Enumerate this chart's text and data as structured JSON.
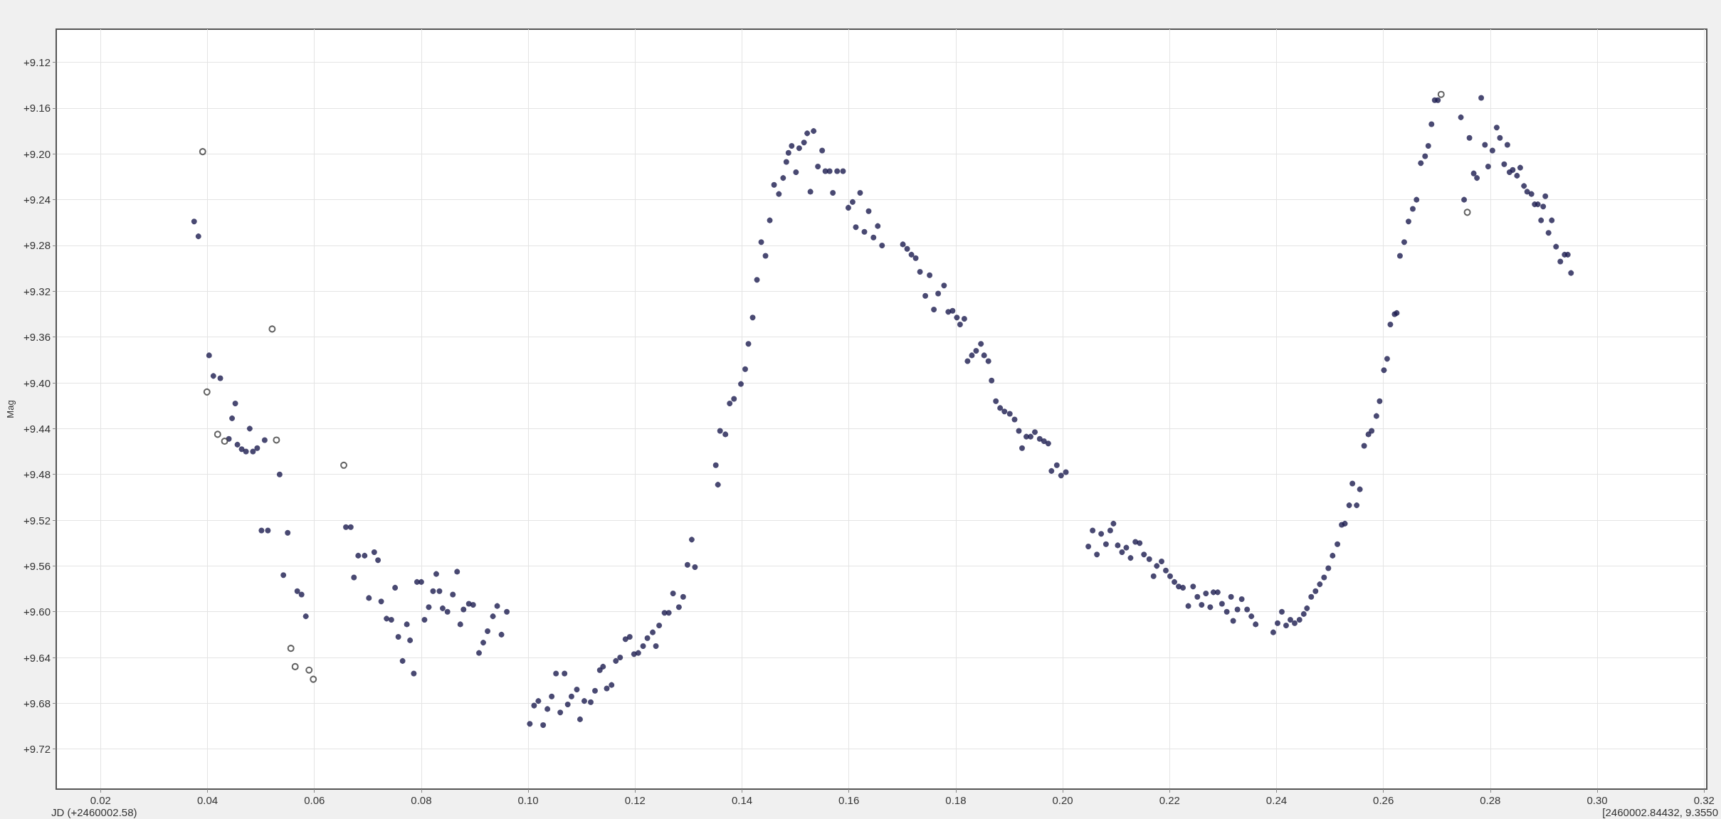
{
  "chart_data": {
    "type": "scatter",
    "xlabel": "JD (+2460002.58)",
    "ylabel": "Mag",
    "annotations": [
      "[2460002.84432, 9.3550"
    ],
    "xlim": [
      0.0117,
      0.3205
    ],
    "ylim": [
      9.755,
      9.091
    ],
    "xticks": [
      0.02,
      0.04,
      0.06,
      0.08,
      {
        "value": 0.1,
        "label": "0.10"
      },
      0.12,
      0.14,
      0.16,
      0.18,
      {
        "value": 0.2,
        "label": "0.20"
      },
      0.22,
      0.24,
      0.26,
      0.28,
      {
        "value": 0.3,
        "label": "0.30"
      },
      0.32
    ],
    "yticks": [
      {
        "value": 9.12,
        "label": "+9.12"
      },
      {
        "value": 9.16,
        "label": "+9.16"
      },
      {
        "value": 9.2,
        "label": "+9.20"
      },
      {
        "value": 9.24,
        "label": "+9.24"
      },
      {
        "value": 9.28,
        "label": "+9.28"
      },
      {
        "value": 9.32,
        "label": "+9.32"
      },
      {
        "value": 9.36,
        "label": "+9.36"
      },
      {
        "value": 9.4,
        "label": "+9.40"
      },
      {
        "value": 9.44,
        "label": "+9.44"
      },
      {
        "value": 9.48,
        "label": "+9.48"
      },
      {
        "value": 9.52,
        "label": "+9.52"
      },
      {
        "value": 9.56,
        "label": "+9.56"
      },
      {
        "value": 9.6,
        "label": "+9.60"
      },
      {
        "value": 9.64,
        "label": "+9.64"
      },
      {
        "value": 9.68,
        "label": "+9.68"
      },
      {
        "value": 9.72,
        "label": "+9.72"
      }
    ],
    "grid": true,
    "marker": "circle",
    "series": [
      {
        "color": "#1b1b4f",
        "x": [
          0.0375,
          0.0383,
          0.0403,
          0.0411,
          0.0424,
          0.044,
          0.0446,
          0.0452,
          0.0456,
          0.0464,
          0.0472,
          0.0479,
          0.0485,
          0.0493,
          0.0501,
          0.0507,
          0.0513,
          0.0535,
          0.0542,
          0.055,
          0.0568,
          0.0576,
          0.0584,
          0.0659,
          0.0668,
          0.0674,
          0.0682,
          0.0694,
          0.0702,
          0.0712,
          0.0719,
          0.0725,
          0.0735,
          0.0744,
          0.0751,
          0.0757,
          0.0765,
          0.0773,
          0.0779,
          0.0786,
          0.0792,
          0.08,
          0.0806,
          0.0814,
          0.0822,
          0.0828,
          0.0834,
          0.084,
          0.0849,
          0.0859,
          0.0867,
          0.0873,
          0.0879,
          0.0889,
          0.0897,
          0.0908,
          0.0916,
          0.0924,
          0.0934,
          0.0942,
          0.095,
          0.096,
          0.1003,
          0.1011,
          0.1019,
          0.1028,
          0.1036,
          0.1044,
          0.1052,
          0.106,
          0.1068,
          0.1074,
          0.1081,
          0.1091,
          0.1097,
          0.1105,
          0.1117,
          0.1125,
          0.1134,
          0.114,
          0.1147,
          0.1156,
          0.1164,
          0.1172,
          0.1182,
          0.119,
          0.1198,
          0.1206,
          0.1215,
          0.1223,
          0.1233,
          0.1239,
          0.1245,
          0.1255,
          0.1263,
          0.1271,
          0.1282,
          0.129,
          0.1298,
          0.1306,
          0.1312,
          0.1351,
          0.1355,
          0.1359,
          0.1369,
          0.1377,
          0.1385,
          0.1398,
          0.1406,
          0.1412,
          0.142,
          0.1428,
          0.1436,
          0.1444,
          0.1452,
          0.146,
          0.1469,
          0.1477,
          0.1483,
          0.1487,
          0.1493,
          0.1501,
          0.1507,
          0.1516,
          0.1522,
          0.1528,
          0.1534,
          0.1542,
          0.155,
          0.1556,
          0.1564,
          0.157,
          0.1578,
          0.1589,
          0.1599,
          0.1607,
          0.1613,
          0.1621,
          0.1629,
          0.1637,
          0.1646,
          0.1654,
          0.1662,
          0.1701,
          0.1709,
          0.1717,
          0.1725,
          0.1733,
          0.1743,
          0.1751,
          0.1759,
          0.1767,
          0.1778,
          0.1786,
          0.1794,
          0.1802,
          0.1808,
          0.1816,
          0.1822,
          0.183,
          0.1838,
          0.1847,
          0.1853,
          0.1861,
          0.1867,
          0.1875,
          0.1883,
          0.1891,
          0.1901,
          0.191,
          0.1918,
          0.1924,
          0.1932,
          0.194,
          0.1948,
          0.1957,
          0.1965,
          0.1973,
          0.1979,
          0.1989,
          0.1997,
          0.2006,
          0.2048,
          0.2056,
          0.2064,
          0.2072,
          0.2081,
          0.2089,
          0.2095,
          0.2103,
          0.2111,
          0.2119,
          0.2127,
          0.2136,
          0.2144,
          0.2152,
          0.2162,
          0.217,
          0.2176,
          0.2185,
          0.2193,
          0.2201,
          0.2209,
          0.2217,
          0.2225,
          0.2235,
          0.2244,
          0.2252,
          0.226,
          0.2268,
          0.2276,
          0.2282,
          0.229,
          0.2298,
          0.2307,
          0.2315,
          0.2319,
          0.2327,
          0.2335,
          0.2345,
          0.2353,
          0.2361,
          0.2394,
          0.2402,
          0.241,
          0.2418,
          0.2426,
          0.2434,
          0.2443,
          0.2451,
          0.2457,
          0.2465,
          0.2473,
          0.2481,
          0.2489,
          0.2497,
          0.2505,
          0.2514,
          0.2522,
          0.2528,
          0.2536,
          0.2542,
          0.255,
          0.2556,
          0.2564,
          0.2572,
          0.2578,
          0.2587,
          0.2593,
          0.2601,
          0.2607,
          0.2613,
          0.2621,
          0.2625,
          0.2631,
          0.2639,
          0.2647,
          0.2655,
          0.2662,
          0.267,
          0.2678,
          0.2684,
          0.269,
          0.2696,
          0.2702,
          0.2745,
          0.2751,
          0.2761,
          0.2769,
          0.2775,
          0.2783,
          0.279,
          0.2796,
          0.2804,
          0.2812,
          0.2818,
          0.2826,
          0.2832,
          0.2836,
          0.2842,
          0.285,
          0.2856,
          0.2863,
          0.2869,
          0.2877,
          0.2883,
          0.2889,
          0.2895,
          0.2899,
          0.2903,
          0.2909,
          0.2915,
          0.2923,
          0.2931,
          0.2939,
          0.2945,
          0.2951
        ],
        "values": [
          9.259,
          9.272,
          9.376,
          9.394,
          9.396,
          9.449,
          9.431,
          9.418,
          9.454,
          9.458,
          9.46,
          9.44,
          9.46,
          9.457,
          9.529,
          9.45,
          9.529,
          9.48,
          9.568,
          9.531,
          9.582,
          9.585,
          9.604,
          9.526,
          9.526,
          9.57,
          9.551,
          9.551,
          9.588,
          9.548,
          9.555,
          9.591,
          9.606,
          9.607,
          9.579,
          9.622,
          9.643,
          9.611,
          9.625,
          9.654,
          9.574,
          9.574,
          9.607,
          9.596,
          9.582,
          9.567,
          9.582,
          9.597,
          9.6,
          9.585,
          9.565,
          9.611,
          9.598,
          9.593,
          9.594,
          9.636,
          9.627,
          9.617,
          9.604,
          9.595,
          9.62,
          9.6,
          9.698,
          9.682,
          9.678,
          9.699,
          9.685,
          9.674,
          9.654,
          9.688,
          9.654,
          9.681,
          9.674,
          9.668,
          9.694,
          9.678,
          9.679,
          9.669,
          9.651,
          9.648,
          9.667,
          9.664,
          9.643,
          9.64,
          9.624,
          9.622,
          9.637,
          9.636,
          9.63,
          9.623,
          9.618,
          9.63,
          9.612,
          9.601,
          9.601,
          9.584,
          9.596,
          9.587,
          9.559,
          9.537,
          9.561,
          9.472,
          9.489,
          9.442,
          9.445,
          9.418,
          9.414,
          9.401,
          9.388,
          9.366,
          9.343,
          9.31,
          9.277,
          9.289,
          9.258,
          9.227,
          9.235,
          9.221,
          9.207,
          9.199,
          9.193,
          9.216,
          9.195,
          9.19,
          9.182,
          9.233,
          9.18,
          9.211,
          9.197,
          9.215,
          9.215,
          9.234,
          9.215,
          9.215,
          9.247,
          9.242,
          9.264,
          9.234,
          9.268,
          9.25,
          9.273,
          9.263,
          9.28,
          9.279,
          9.283,
          9.288,
          9.291,
          9.303,
          9.324,
          9.306,
          9.336,
          9.322,
          9.315,
          9.338,
          9.337,
          9.343,
          9.349,
          9.344,
          9.381,
          9.376,
          9.372,
          9.366,
          9.376,
          9.381,
          9.398,
          9.416,
          9.422,
          9.425,
          9.427,
          9.432,
          9.442,
          9.457,
          9.447,
          9.447,
          9.443,
          9.449,
          9.451,
          9.453,
          9.477,
          9.472,
          9.481,
          9.478,
          9.543,
          9.529,
          9.55,
          9.532,
          9.541,
          9.529,
          9.523,
          9.542,
          9.548,
          9.544,
          9.553,
          9.539,
          9.54,
          9.55,
          9.554,
          9.569,
          9.56,
          9.556,
          9.564,
          9.569,
          9.574,
          9.578,
          9.579,
          9.595,
          9.578,
          9.587,
          9.594,
          9.584,
          9.596,
          9.583,
          9.583,
          9.593,
          9.6,
          9.587,
          9.608,
          9.598,
          9.589,
          9.598,
          9.604,
          9.611,
          9.618,
          9.61,
          9.6,
          9.612,
          9.607,
          9.61,
          9.607,
          9.602,
          9.597,
          9.587,
          9.582,
          9.576,
          9.57,
          9.562,
          9.551,
          9.541,
          9.524,
          9.523,
          9.507,
          9.488,
          9.507,
          9.493,
          9.455,
          9.445,
          9.442,
          9.429,
          9.416,
          9.389,
          9.379,
          9.349,
          9.34,
          9.339,
          9.289,
          9.277,
          9.259,
          9.248,
          9.24,
          9.208,
          9.202,
          9.193,
          9.174,
          9.153,
          9.153,
          9.168,
          9.24,
          9.186,
          9.217,
          9.221,
          9.151,
          9.192,
          9.211,
          9.197,
          9.177,
          9.186,
          9.209,
          9.192,
          9.216,
          9.214,
          9.219,
          9.212,
          9.228,
          9.233,
          9.235,
          9.244,
          9.244,
          9.258,
          9.246,
          9.237,
          9.269,
          9.258,
          9.281,
          9.294,
          9.288,
          9.288,
          9.304
        ]
      },
      {
        "color": "#3a3a3a",
        "x": [
          0.0391,
          0.0399,
          0.0419,
          0.0432,
          0.0521,
          0.0529,
          0.0556,
          0.0564,
          0.059,
          0.0598,
          0.0655,
          0.2708,
          0.2757
        ],
        "values": [
          9.198,
          9.408,
          9.445,
          9.451,
          9.353,
          9.45,
          9.632,
          9.648,
          9.651,
          9.659,
          9.472,
          9.148,
          9.251
        ]
      }
    ]
  }
}
